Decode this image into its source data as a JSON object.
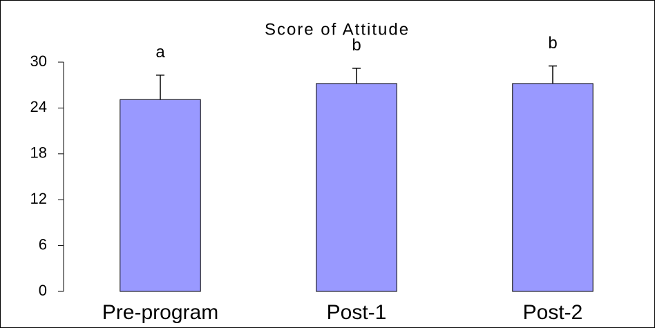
{
  "chart_data": {
    "type": "bar",
    "title": "Score of Attitude",
    "categories": [
      "Pre-program",
      "Post-1",
      "Post-2"
    ],
    "values": [
      25.1,
      27.2,
      27.2
    ],
    "errors": [
      3.2,
      2.0,
      2.3
    ],
    "annotations": [
      "a",
      "b",
      "b"
    ],
    "color": "#9999ff",
    "ylim": [
      0,
      30
    ],
    "yticks": [
      0,
      6,
      12,
      18,
      24,
      30
    ],
    "grid": false
  }
}
